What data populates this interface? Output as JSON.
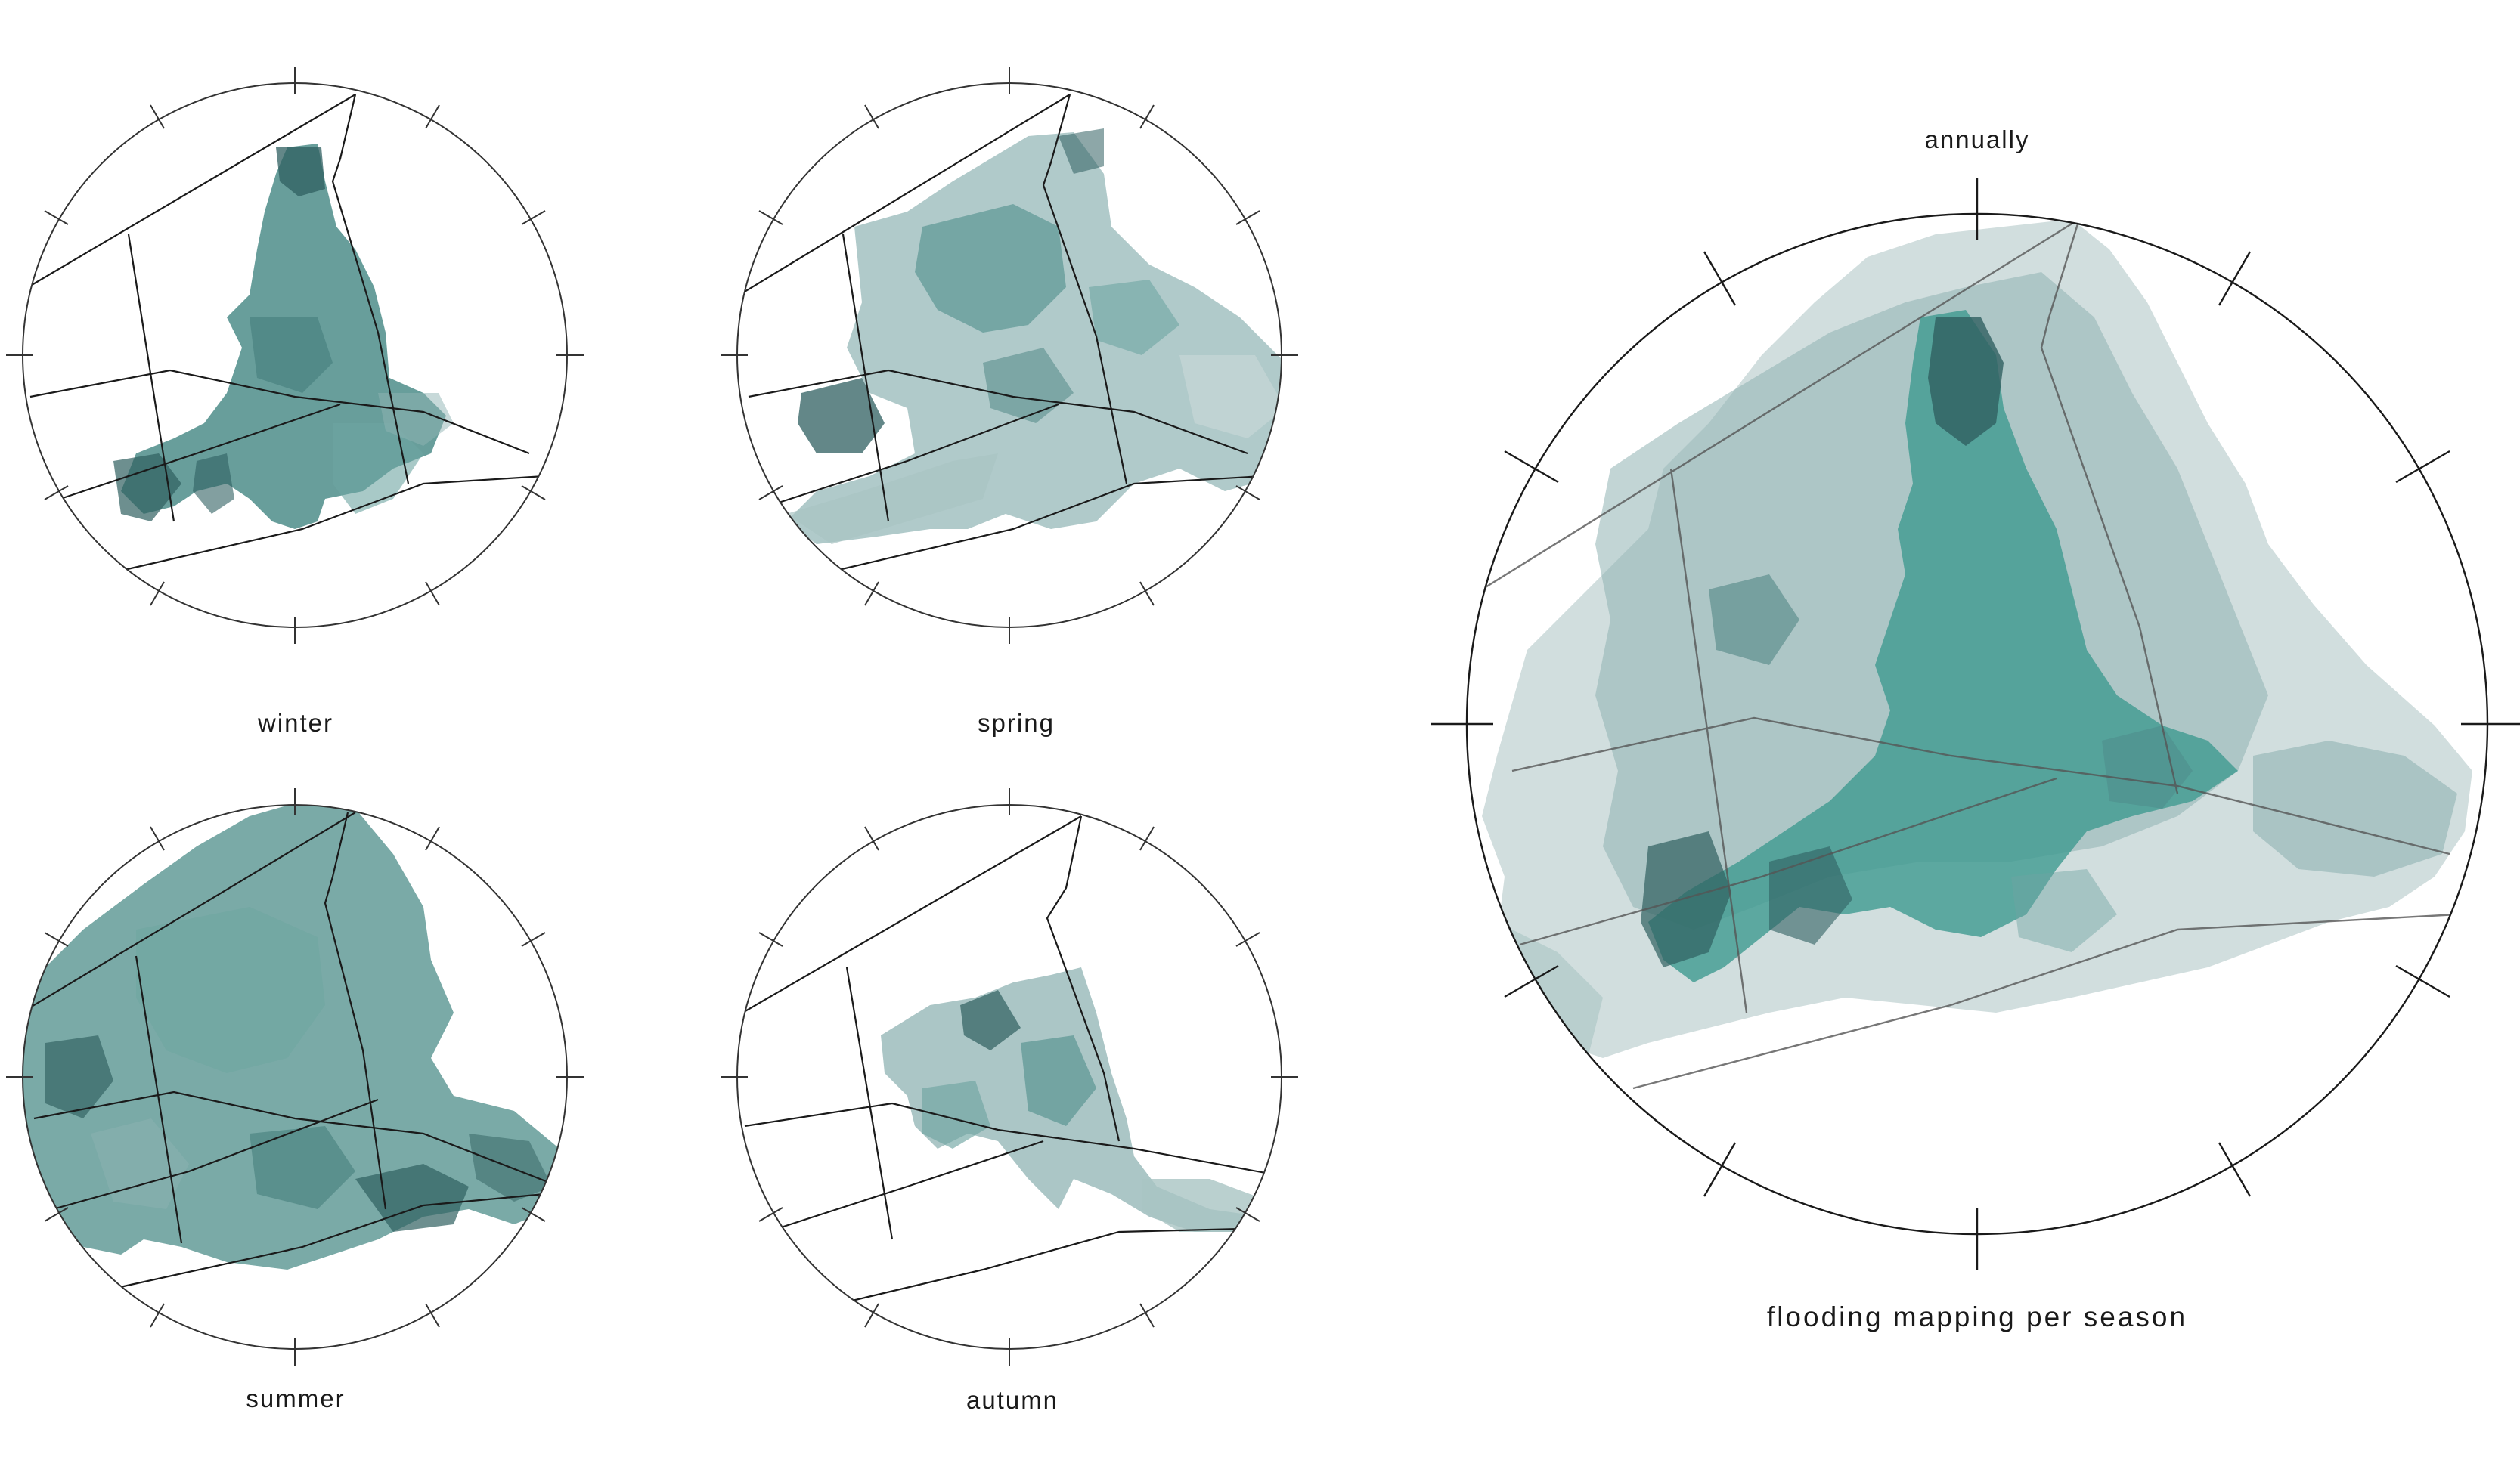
{
  "maps": [
    {
      "id": "winter",
      "label": "winter"
    },
    {
      "id": "spring",
      "label": "spring"
    },
    {
      "id": "summer",
      "label": "summer"
    },
    {
      "id": "autumn",
      "label": "autumn"
    },
    {
      "id": "annually",
      "label": "annually"
    }
  ],
  "caption": "flooding mapping per season",
  "colors": {
    "flood_dark": "#2f5f60",
    "flood_mid": "#4e8d8a",
    "flood_teal": "#3f9a90",
    "flood_light": "#8fb3b3",
    "flood_pale": "#c6d6d6",
    "roads": "#1a1a1a",
    "frame": "#333333"
  }
}
